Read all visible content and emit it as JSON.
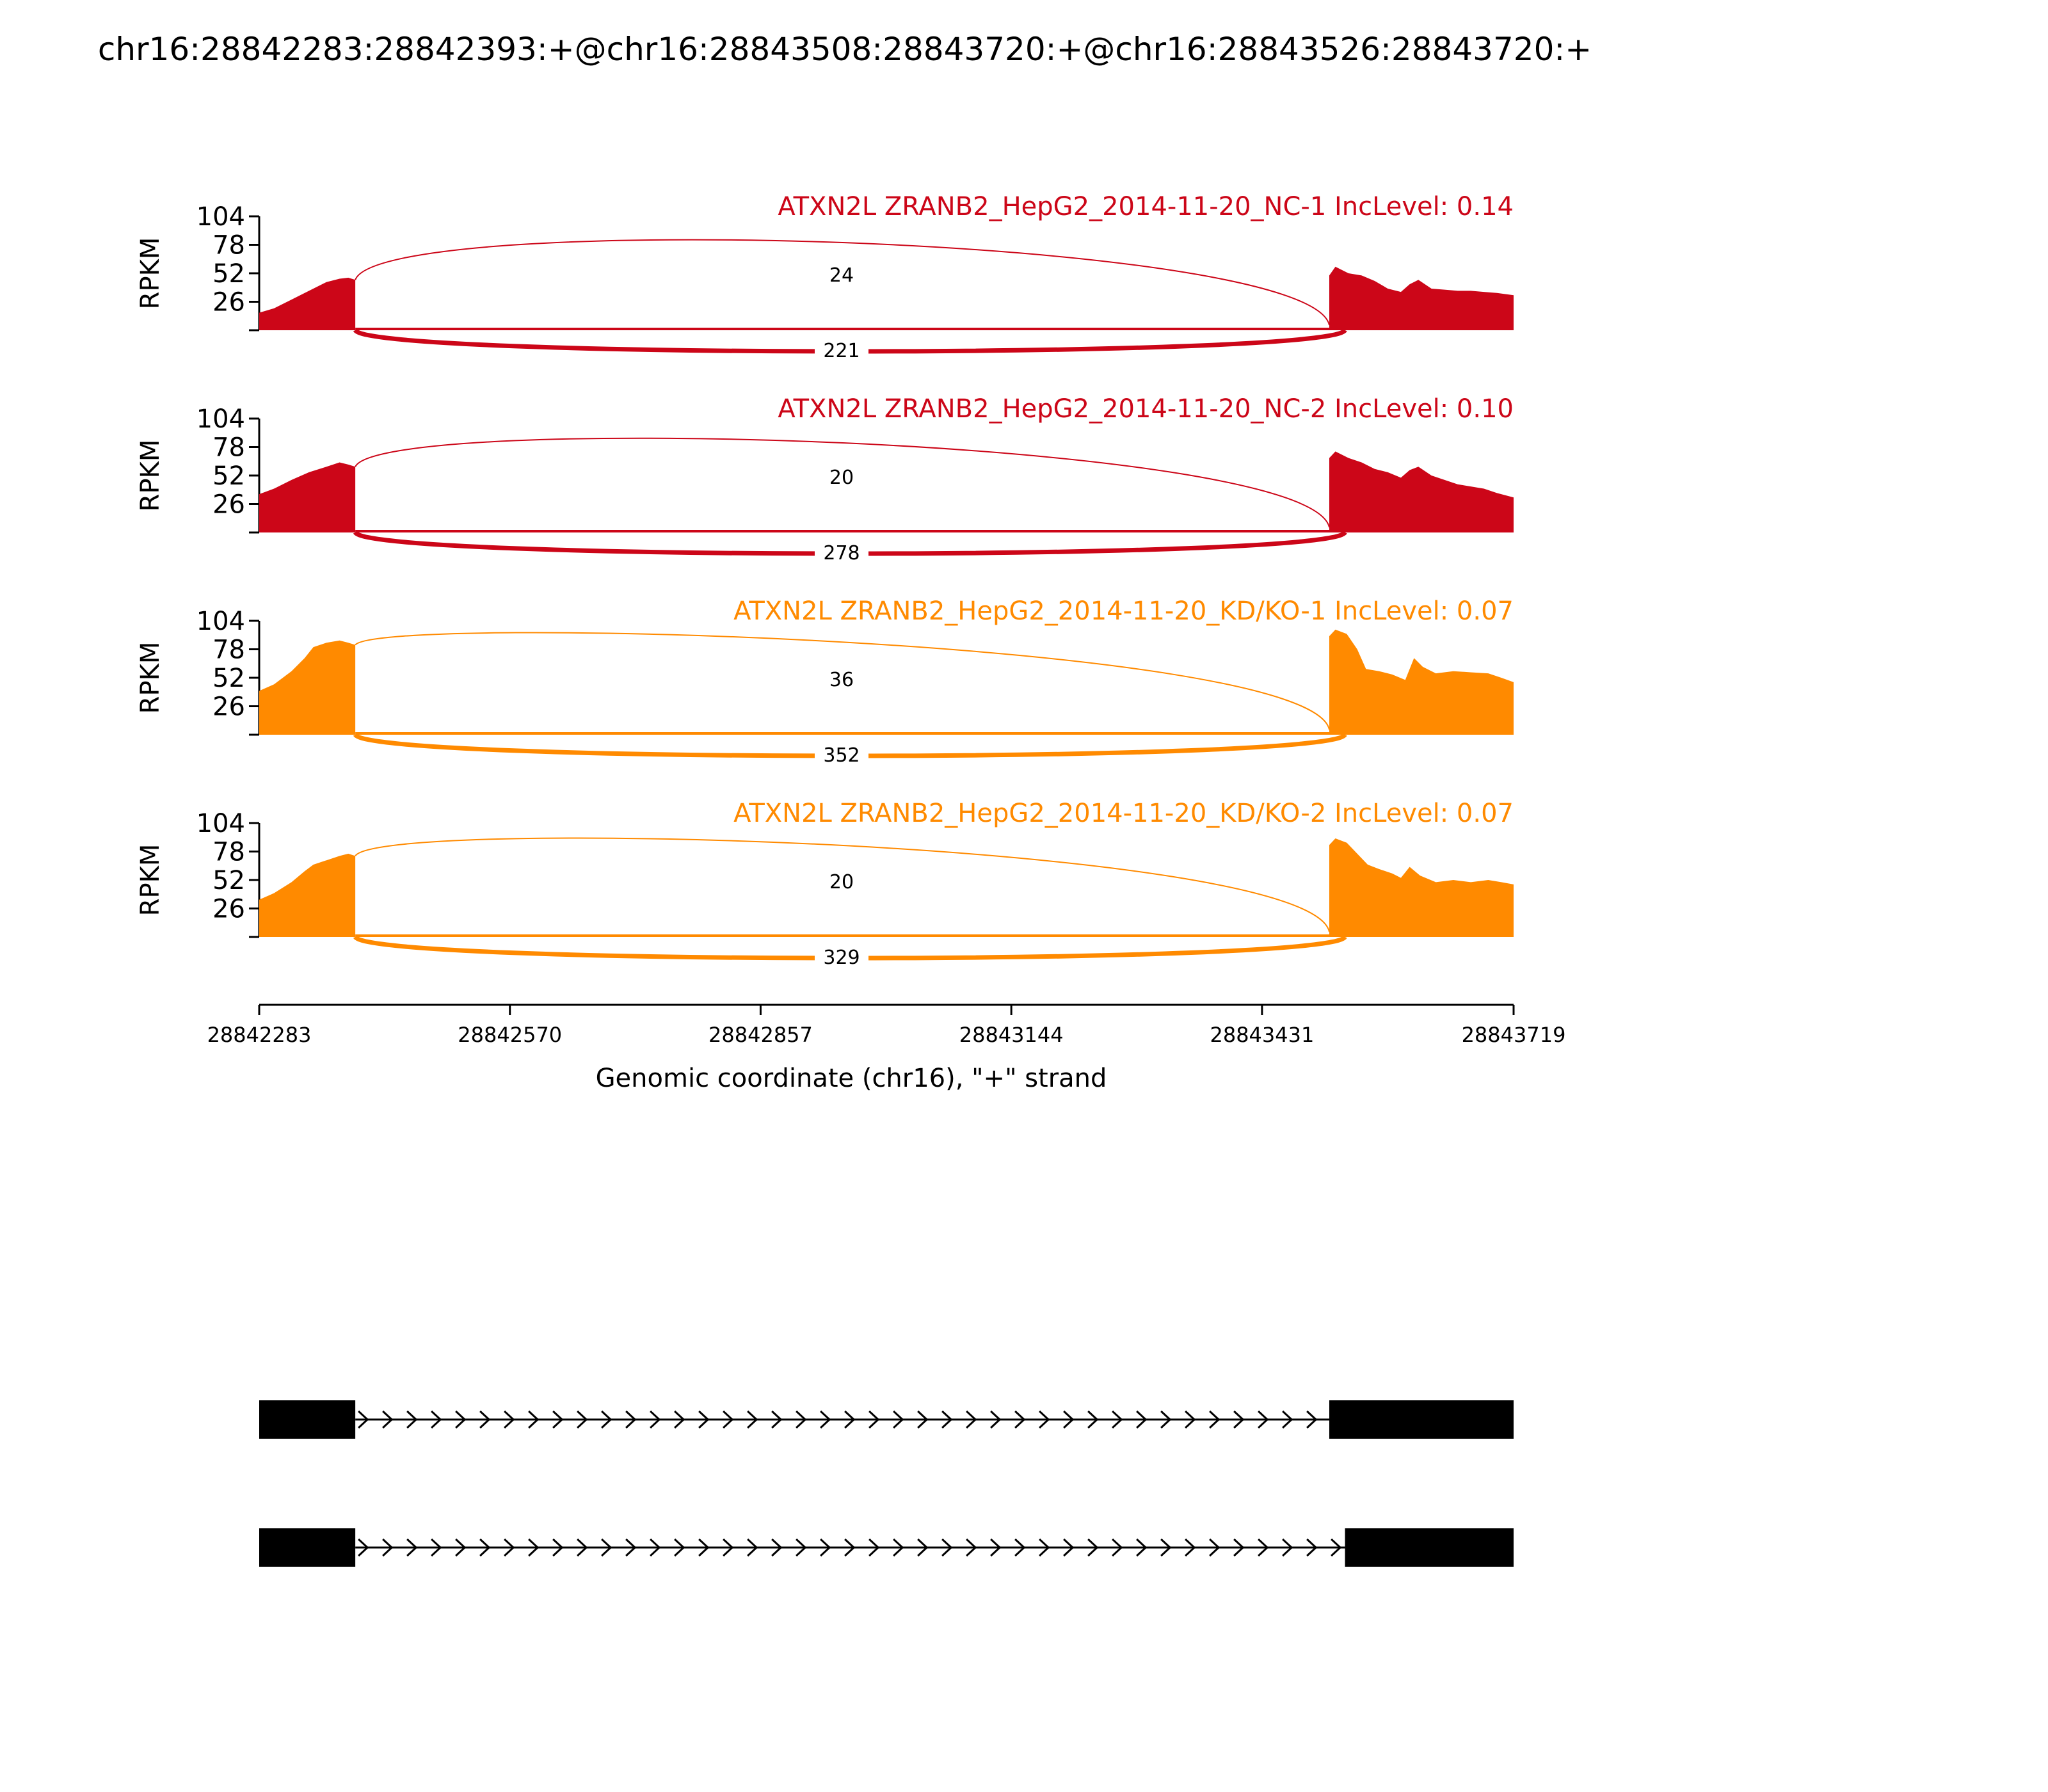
{
  "title": "chr16:28842283:28842393:+@chr16:28843508:28843720:+@chr16:28843526:28843720:+",
  "colors": {
    "nc": "#cc0618",
    "kd": "#ff8a00",
    "axis": "#000000",
    "gene": "#000000"
  },
  "chart_data": {
    "type": "area",
    "title": "chr16:28842283:28842393:+@chr16:28843508:28843720:+@chr16:28843526:28843720:+",
    "xlabel": "Genomic coordinate (chr16), \"+\" strand",
    "ylabel": "RPKM",
    "xlim": [
      28842283,
      28843719
    ],
    "xticks": [
      "28842283",
      "28842570",
      "28842857",
      "28843144",
      "28843431",
      "28843719"
    ],
    "ylim": [
      0,
      104
    ],
    "yticks": [
      "26",
      "52",
      "78",
      "104"
    ],
    "grid": false,
    "series": [
      {
        "name": "ATXN2L ZRANB2_HepG2_2014-11-20_NC-1 IncLevel: 0.14",
        "color": "#cc0618",
        "exon1": [
          [
            28842283,
            16
          ],
          [
            28842300,
            20
          ],
          [
            28842320,
            28
          ],
          [
            28842340,
            36
          ],
          [
            28842360,
            44
          ],
          [
            28842375,
            47
          ],
          [
            28842385,
            48
          ],
          [
            28842393,
            46
          ]
        ],
        "exon2": [
          [
            28843508,
            50
          ],
          [
            28843515,
            58
          ],
          [
            28843530,
            52
          ],
          [
            28843545,
            50
          ],
          [
            28843560,
            45
          ],
          [
            28843575,
            38
          ],
          [
            28843590,
            35
          ],
          [
            28843600,
            42
          ],
          [
            28843610,
            46
          ],
          [
            28843625,
            38
          ],
          [
            28843640,
            37
          ],
          [
            28843655,
            36
          ],
          [
            28843670,
            36
          ],
          [
            28843685,
            35
          ],
          [
            28843700,
            34
          ],
          [
            28843719,
            32
          ]
        ],
        "junctions": [
          {
            "label": "24",
            "from": 28842393,
            "to": 28843508,
            "side": "top"
          },
          {
            "label": "221",
            "from": 28842393,
            "to": 28843526,
            "side": "bottom"
          }
        ]
      },
      {
        "name": "ATXN2L ZRANB2_HepG2_2014-11-20_NC-2 IncLevel: 0.10",
        "color": "#cc0618",
        "exon1": [
          [
            28842283,
            35
          ],
          [
            28842300,
            40
          ],
          [
            28842320,
            48
          ],
          [
            28842340,
            55
          ],
          [
            28842360,
            60
          ],
          [
            28842375,
            64
          ],
          [
            28842385,
            62
          ],
          [
            28842393,
            60
          ]
        ],
        "exon2": [
          [
            28843508,
            68
          ],
          [
            28843515,
            74
          ],
          [
            28843530,
            68
          ],
          [
            28843545,
            64
          ],
          [
            28843560,
            58
          ],
          [
            28843575,
            55
          ],
          [
            28843590,
            50
          ],
          [
            28843600,
            57
          ],
          [
            28843610,
            60
          ],
          [
            28843625,
            52
          ],
          [
            28843640,
            48
          ],
          [
            28843655,
            44
          ],
          [
            28843670,
            42
          ],
          [
            28843685,
            40
          ],
          [
            28843700,
            36
          ],
          [
            28843719,
            32
          ]
        ],
        "junctions": [
          {
            "label": "20",
            "from": 28842393,
            "to": 28843508,
            "side": "top"
          },
          {
            "label": "278",
            "from": 28842393,
            "to": 28843526,
            "side": "bottom"
          }
        ]
      },
      {
        "name": "ATXN2L ZRANB2_HepG2_2014-11-20_KD/KO-1 IncLevel: 0.07",
        "color": "#ff8a00",
        "exon1": [
          [
            28842283,
            40
          ],
          [
            28842300,
            46
          ],
          [
            28842320,
            58
          ],
          [
            28842335,
            70
          ],
          [
            28842345,
            80
          ],
          [
            28842360,
            84
          ],
          [
            28842375,
            86
          ],
          [
            28842385,
            84
          ],
          [
            28842393,
            82
          ]
        ],
        "exon2": [
          [
            28843508,
            90
          ],
          [
            28843515,
            96
          ],
          [
            28843528,
            92
          ],
          [
            28843540,
            78
          ],
          [
            28843550,
            60
          ],
          [
            28843565,
            58
          ],
          [
            28843580,
            55
          ],
          [
            28843595,
            50
          ],
          [
            28843605,
            70
          ],
          [
            28843615,
            62
          ],
          [
            28843630,
            56
          ],
          [
            28843650,
            58
          ],
          [
            28843670,
            57
          ],
          [
            28843690,
            56
          ],
          [
            28843705,
            52
          ],
          [
            28843719,
            48
          ]
        ],
        "junctions": [
          {
            "label": "36",
            "from": 28842393,
            "to": 28843508,
            "side": "top"
          },
          {
            "label": "352",
            "from": 28842393,
            "to": 28843526,
            "side": "bottom"
          }
        ]
      },
      {
        "name": "ATXN2L ZRANB2_HepG2_2014-11-20_KD/KO-2 IncLevel: 0.07",
        "color": "#ff8a00",
        "exon1": [
          [
            28842283,
            34
          ],
          [
            28842300,
            40
          ],
          [
            28842320,
            50
          ],
          [
            28842335,
            60
          ],
          [
            28842345,
            66
          ],
          [
            28842360,
            70
          ],
          [
            28842375,
            74
          ],
          [
            28842385,
            76
          ],
          [
            28842393,
            74
          ]
        ],
        "exon2": [
          [
            28843508,
            84
          ],
          [
            28843515,
            90
          ],
          [
            28843528,
            86
          ],
          [
            28843540,
            76
          ],
          [
            28843552,
            66
          ],
          [
            28843565,
            62
          ],
          [
            28843580,
            58
          ],
          [
            28843590,
            54
          ],
          [
            28843600,
            64
          ],
          [
            28843612,
            56
          ],
          [
            28843630,
            50
          ],
          [
            28843650,
            52
          ],
          [
            28843670,
            50
          ],
          [
            28843690,
            52
          ],
          [
            28843705,
            50
          ],
          [
            28843719,
            48
          ]
        ],
        "junctions": [
          {
            "label": "20",
            "from": 28842393,
            "to": 28843508,
            "side": "top"
          },
          {
            "label": "329",
            "from": 28842393,
            "to": 28843526,
            "side": "bottom"
          }
        ]
      }
    ],
    "isoforms": [
      {
        "exons": [
          [
            28842283,
            28842393
          ],
          [
            28843508,
            28843720
          ]
        ]
      },
      {
        "exons": [
          [
            28842283,
            28842393
          ],
          [
            28843526,
            28843720
          ]
        ]
      }
    ]
  }
}
